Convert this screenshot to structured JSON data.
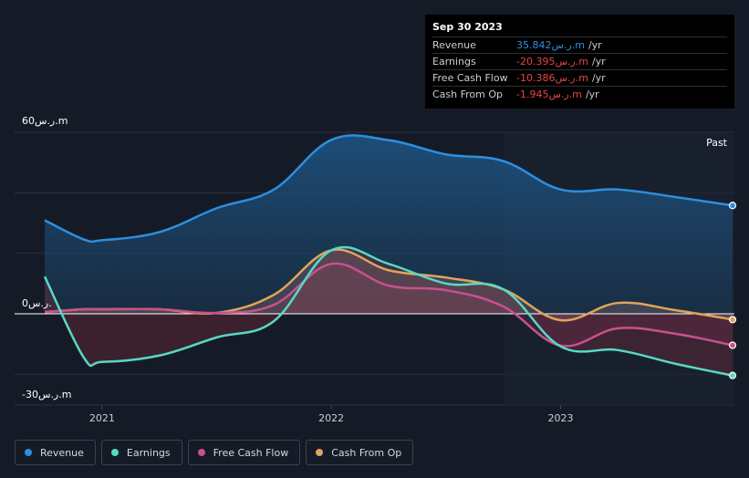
{
  "tooltip": {
    "date": "Sep 30 2023",
    "rows": [
      {
        "label": "Revenue",
        "value": "35.842ر.س.m",
        "unit": "/yr",
        "color": "#2d8fe0"
      },
      {
        "label": "Earnings",
        "value": "-20.395ر.س.m",
        "unit": "/yr",
        "color": "#e84545"
      },
      {
        "label": "Free Cash Flow",
        "value": "-10.386ر.س.m",
        "unit": "/yr",
        "color": "#e84545"
      },
      {
        "label": "Cash From Op",
        "value": "-1.945ر.س.m",
        "unit": "/yr",
        "color": "#e84545"
      }
    ]
  },
  "past_label": "Past",
  "legend": [
    {
      "label": "Revenue",
      "color": "#2d8fe0"
    },
    {
      "label": "Earnings",
      "color": "#57d9c4"
    },
    {
      "label": "Free Cash Flow",
      "color": "#c9508f"
    },
    {
      "label": "Cash From Op",
      "color": "#e0a45a"
    }
  ],
  "chart_data": {
    "type": "line",
    "y_tick_labels": [
      "60ر.س.m",
      "0ر.س.",
      "-30ر.س.m"
    ],
    "y_tick_values": [
      60,
      0,
      -30
    ],
    "ylim": [
      -30,
      60
    ],
    "x_tick_labels": [
      "2021",
      "2022",
      "2023"
    ],
    "x_tick_values": [
      2021.0,
      2022.0,
      2023.0
    ],
    "xlim": [
      2020.75,
      2023.75
    ],
    "past_start": 2022.75,
    "grid": true,
    "series": [
      {
        "name": "Revenue",
        "color": "#2d8fe0",
        "x": [
          2020.75,
          2020.92,
          2021.0,
          2021.25,
          2021.5,
          2021.75,
          2022.0,
          2022.25,
          2022.5,
          2022.75,
          2023.0,
          2023.25,
          2023.5,
          2023.75
        ],
        "y": [
          30.9,
          24.6,
          24.3,
          27.0,
          34.9,
          41.1,
          57.5,
          57.4,
          52.7,
          50.5,
          41.1,
          41.1,
          38.6,
          35.8
        ]
      },
      {
        "name": "Earnings",
        "color": "#57d9c4",
        "x": [
          2020.75,
          2020.92,
          2021.0,
          2021.25,
          2021.5,
          2021.75,
          2022.0,
          2022.25,
          2022.5,
          2022.75,
          2023.0,
          2023.25,
          2023.5,
          2023.75
        ],
        "y": [
          12.3,
          -14.4,
          -15.9,
          -13.8,
          -7.8,
          -2.4,
          21.0,
          16.5,
          10.0,
          8.1,
          -10.8,
          -12.0,
          -16.5,
          -20.4
        ]
      },
      {
        "name": "Free Cash Flow",
        "color": "#c9508f",
        "x": [
          2020.75,
          2020.92,
          2021.0,
          2021.25,
          2021.5,
          2021.75,
          2022.0,
          2022.25,
          2022.5,
          2022.75,
          2023.0,
          2023.25,
          2023.5,
          2023.75
        ],
        "y": [
          0.6,
          1.5,
          1.5,
          1.5,
          0.3,
          3.0,
          16.5,
          9.3,
          7.8,
          2.4,
          -10.5,
          -4.8,
          -6.6,
          -10.4
        ]
      },
      {
        "name": "Cash From Op",
        "color": "#e0a45a",
        "x": [
          2020.75,
          2020.92,
          2021.0,
          2021.25,
          2021.5,
          2021.75,
          2022.0,
          2022.25,
          2022.5,
          2022.75,
          2023.0,
          2023.25,
          2023.5,
          2023.75
        ],
        "y": [
          0.6,
          1.5,
          1.5,
          1.5,
          0.3,
          6.3,
          21.0,
          14.4,
          12.0,
          8.1,
          -2.1,
          3.6,
          1.2,
          -1.9
        ]
      }
    ]
  }
}
